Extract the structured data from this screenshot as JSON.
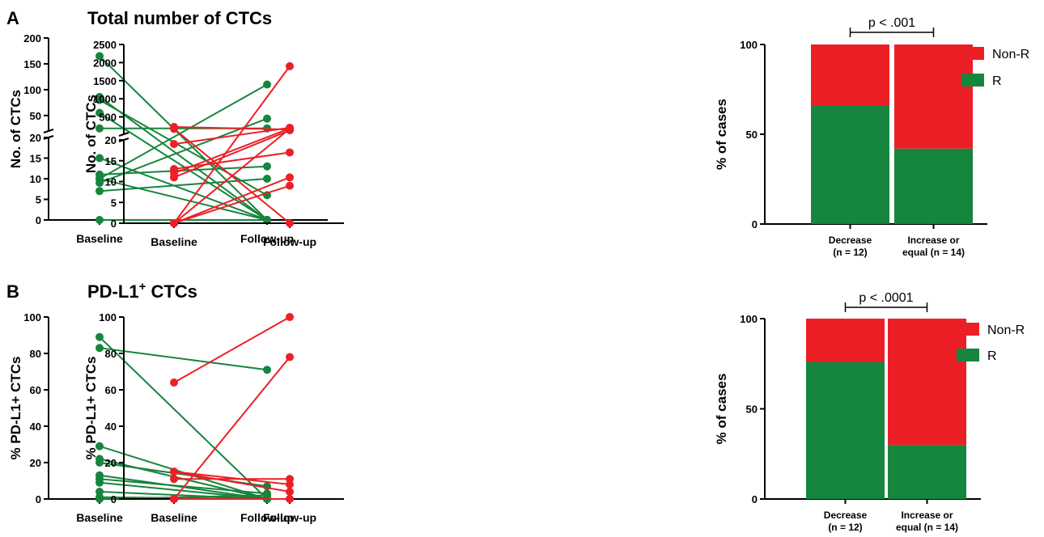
{
  "panels": [
    {
      "letter": "A",
      "title": "Total number of CTCs",
      "title_sup": ""
    },
    {
      "letter": "B",
      "title": "PD-L1",
      "title_sup": "+",
      "title_suffix": " CTCs"
    }
  ],
  "colors": {
    "green": "#16853d",
    "red": "#ec1f26",
    "bar_green": "#16853d",
    "bar_red": "#ec1f26"
  },
  "chart_data": [
    {
      "type": "line",
      "id": "A1",
      "ylabel": "No. of CTCs",
      "categories": [
        "Baseline",
        "Follow-up"
      ],
      "broken_axis": true,
      "ylim_lower": [
        0,
        20
      ],
      "yticks_lower": [
        0,
        5,
        10,
        15,
        20
      ],
      "ylim_upper": [
        20,
        200
      ],
      "yticks_upper": [
        50,
        100,
        150,
        200
      ],
      "color": "#16853d",
      "pairs": [
        [
          165,
          0
        ],
        [
          86,
          0
        ],
        [
          80,
          6
        ],
        [
          55,
          0
        ],
        [
          25,
          25
        ],
        [
          15,
          0
        ],
        [
          11,
          13
        ],
        [
          10,
          110
        ],
        [
          10,
          0
        ],
        [
          9,
          44
        ],
        [
          7,
          10
        ],
        [
          0,
          0
        ]
      ]
    },
    {
      "type": "line",
      "id": "A2",
      "ylabel": "No. of CTCs",
      "categories": [
        "Baseline",
        "Follow-up"
      ],
      "broken_axis": true,
      "ylim_lower": [
        0,
        20
      ],
      "yticks_lower": [
        0,
        5,
        10,
        15,
        20
      ],
      "ylim_upper": [
        20,
        2500
      ],
      "yticks_upper": [
        500,
        1000,
        1500,
        2000,
        2500
      ],
      "color": "#ec1f26",
      "pairs": [
        [
          220,
          150
        ],
        [
          170,
          0
        ],
        [
          19,
          200
        ],
        [
          13,
          17
        ],
        [
          12,
          180
        ],
        [
          11,
          130
        ],
        [
          0,
          1900
        ],
        [
          0,
          11
        ],
        [
          0,
          9
        ],
        [
          0,
          170
        ]
      ]
    },
    {
      "type": "bar",
      "id": "A3",
      "stacked": true,
      "ylabel": "% of cases",
      "ylim": [
        0,
        100
      ],
      "yticks": [
        0,
        50,
        100
      ],
      "categories": [
        [
          "Decrease",
          "(n = 12)"
        ],
        [
          "Increase or",
          "equal (n = 14)"
        ]
      ],
      "series": [
        {
          "name": "R",
          "values": [
            66,
            42
          ]
        },
        {
          "name": "Non-R",
          "values": [
            34,
            58
          ]
        }
      ],
      "legend": [
        "Non-R",
        "R"
      ],
      "legend_position": "top-right",
      "annotation": "p < .001"
    },
    {
      "type": "line",
      "id": "B1",
      "ylabel": "% PD-L1+ CTCs",
      "categories": [
        "Baseline",
        "Follow-up"
      ],
      "ylim": [
        0,
        100
      ],
      "yticks": [
        0,
        20,
        40,
        60,
        80,
        100
      ],
      "color": "#16853d",
      "pairs": [
        [
          89,
          0
        ],
        [
          83,
          71
        ],
        [
          29,
          0
        ],
        [
          22,
          0
        ],
        [
          20,
          7
        ],
        [
          13,
          0
        ],
        [
          11,
          3
        ],
        [
          9,
          0
        ],
        [
          4,
          0
        ],
        [
          1,
          0
        ],
        [
          0,
          2
        ]
      ]
    },
    {
      "type": "line",
      "id": "B2",
      "ylabel": "% PD-L1+ CTCs",
      "categories": [
        "Baseline",
        "Follow-up"
      ],
      "ylim": [
        0,
        100
      ],
      "yticks": [
        0,
        20,
        40,
        60,
        80,
        100
      ],
      "color": "#ec1f26",
      "pairs": [
        [
          64,
          100
        ],
        [
          15,
          8
        ],
        [
          15,
          4
        ],
        [
          11,
          11
        ],
        [
          0,
          78
        ],
        [
          0,
          0
        ],
        [
          0,
          0
        ]
      ]
    },
    {
      "type": "bar",
      "id": "B3",
      "stacked": true,
      "ylabel": "% of cases",
      "ylim": [
        0,
        100
      ],
      "yticks": [
        0,
        50,
        100
      ],
      "categories": [
        [
          "Decrease",
          "(n = 12)"
        ],
        [
          "Increase or",
          "equal (n = 14)"
        ]
      ],
      "series": [
        {
          "name": "R",
          "values": [
            76,
            30
          ]
        },
        {
          "name": "Non-R",
          "values": [
            24,
            70
          ]
        }
      ],
      "legend": [
        "Non-R",
        "R"
      ],
      "legend_position": "top-right",
      "annotation": "p < .0001"
    }
  ]
}
